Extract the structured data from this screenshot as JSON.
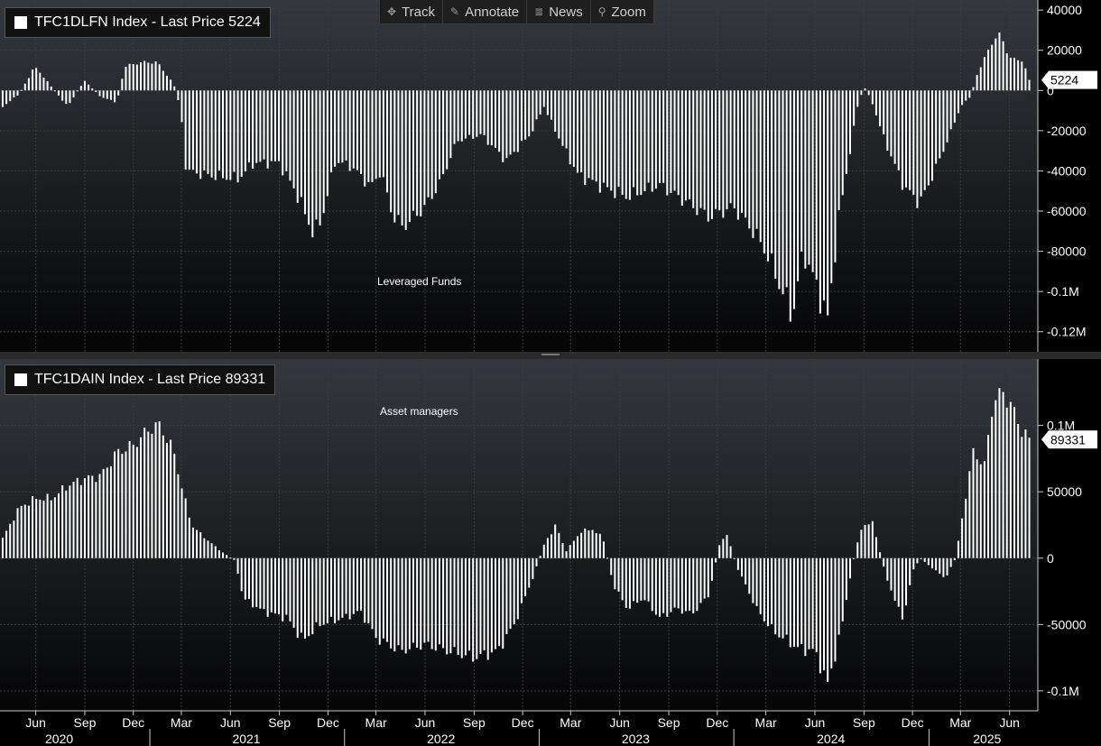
{
  "toolbar": {
    "items": [
      {
        "label": "Track",
        "icon": "crosshair-icon"
      },
      {
        "label": "Annotate",
        "icon": "pencil-icon"
      },
      {
        "label": "News",
        "icon": "news-icon"
      },
      {
        "label": "Zoom",
        "icon": "magnifier-icon"
      }
    ]
  },
  "colors": {
    "background": "#000000",
    "bars": "#ffffff",
    "grid": "#3c3c3c",
    "axis": "#c8c8c8"
  },
  "chart_data": [
    {
      "type": "bar",
      "panel": "top",
      "legend": "TFC1DLFN Index - Last Price 5224",
      "annotation": "Leveraged Funds",
      "last_value_label": "5224",
      "ylim": [
        -130000,
        45000
      ],
      "y_ticks": [
        {
          "v": 40000,
          "label": "40000"
        },
        {
          "v": 20000,
          "label": "20000"
        },
        {
          "v": 0,
          "label": "0"
        },
        {
          "v": -20000,
          "label": "-20000"
        },
        {
          "v": -40000,
          "label": "-40000"
        },
        {
          "v": -60000,
          "label": "-60000"
        },
        {
          "v": -80000,
          "label": "-80000"
        },
        {
          "v": -100000,
          "label": "-0.1M"
        },
        {
          "v": -120000,
          "label": "-0.12M"
        }
      ],
      "series_knots": [
        [
          "2020-03-31",
          -8000
        ],
        [
          "2020-04-30",
          -2000
        ],
        [
          "2020-05-31",
          12000
        ],
        [
          "2020-06-30",
          2000
        ],
        [
          "2020-07-31",
          -8000
        ],
        [
          "2020-08-31",
          5000
        ],
        [
          "2020-09-30",
          -3000
        ],
        [
          "2020-10-31",
          -6000
        ],
        [
          "2020-11-15",
          12000
        ],
        [
          "2020-12-15",
          14000
        ],
        [
          "2021-01-15",
          14000
        ],
        [
          "2021-02-15",
          3000
        ],
        [
          "2021-02-28",
          -10000
        ],
        [
          "2021-03-10",
          -40000
        ],
        [
          "2021-04-15",
          -42000
        ],
        [
          "2021-06-15",
          -44000
        ],
        [
          "2021-07-15",
          -36000
        ],
        [
          "2021-08-31",
          -36000
        ],
        [
          "2021-10-01",
          -50000
        ],
        [
          "2021-11-05",
          -72000
        ],
        [
          "2021-11-20",
          -63000
        ],
        [
          "2021-12-15",
          -35000
        ],
        [
          "2022-01-15",
          -38000
        ],
        [
          "2022-02-20",
          -48000
        ],
        [
          "2022-03-10",
          -40000
        ],
        [
          "2022-04-01",
          -62000
        ],
        [
          "2022-04-20",
          -68000
        ],
        [
          "2022-06-01",
          -58000
        ],
        [
          "2022-07-01",
          -45000
        ],
        [
          "2022-07-31",
          -25000
        ],
        [
          "2022-09-15",
          -22000
        ],
        [
          "2022-10-31",
          -35000
        ],
        [
          "2022-12-15",
          -22000
        ],
        [
          "2023-01-10",
          -8000
        ],
        [
          "2023-02-15",
          -28000
        ],
        [
          "2023-03-15",
          -42000
        ],
        [
          "2023-05-01",
          -48000
        ],
        [
          "2023-06-15",
          -53000
        ],
        [
          "2023-08-15",
          -47000
        ],
        [
          "2023-10-01",
          -55000
        ],
        [
          "2023-11-15",
          -63000
        ],
        [
          "2023-12-31",
          -58000
        ],
        [
          "2024-02-01",
          -68000
        ],
        [
          "2024-03-01",
          -80000
        ],
        [
          "2024-04-01",
          -100000
        ],
        [
          "2024-04-20",
          -112000
        ],
        [
          "2024-05-10",
          -80000
        ],
        [
          "2024-06-01",
          -95000
        ],
        [
          "2024-06-25",
          -114000
        ],
        [
          "2024-07-15",
          -65000
        ],
        [
          "2024-08-01",
          -38000
        ],
        [
          "2024-08-20",
          -8000
        ],
        [
          "2024-09-01",
          2000
        ],
        [
          "2024-09-15",
          -5000
        ],
        [
          "2024-10-10",
          -25000
        ],
        [
          "2024-11-15",
          -48000
        ],
        [
          "2024-12-15",
          -56000
        ],
        [
          "2025-01-15",
          -38000
        ],
        [
          "2025-02-15",
          -18000
        ],
        [
          "2025-03-01",
          -8000
        ],
        [
          "2025-03-20",
          -3000
        ],
        [
          "2025-04-01",
          8000
        ],
        [
          "2025-05-01",
          25000
        ],
        [
          "2025-05-15",
          28000
        ],
        [
          "2025-06-01",
          16000
        ],
        [
          "2025-06-25",
          15000
        ],
        [
          "2025-07-08",
          5224
        ]
      ]
    },
    {
      "type": "bar",
      "panel": "bottom",
      "legend": "TFC1DAIN Index - Last Price 89331",
      "annotation": "Asset managers",
      "last_value_label": "89331",
      "ylim": [
        -115000,
        150000
      ],
      "y_ticks": [
        {
          "v": 100000,
          "label": "0.1M"
        },
        {
          "v": 50000,
          "label": "50000"
        },
        {
          "v": 0,
          "label": "0"
        },
        {
          "v": -50000,
          "label": "-50000"
        },
        {
          "v": -100000,
          "label": "-0.1M"
        }
      ],
      "series_knots": [
        [
          "2020-03-31",
          15000
        ],
        [
          "2020-05-01",
          38000
        ],
        [
          "2020-06-01",
          45000
        ],
        [
          "2020-07-01",
          45000
        ],
        [
          "2020-08-01",
          55000
        ],
        [
          "2020-09-01",
          60000
        ],
        [
          "2020-10-01",
          62000
        ],
        [
          "2020-11-01",
          80000
        ],
        [
          "2020-12-01",
          85000
        ],
        [
          "2021-01-01",
          98000
        ],
        [
          "2021-01-20",
          100000
        ],
        [
          "2021-02-15",
          80000
        ],
        [
          "2021-03-01",
          55000
        ],
        [
          "2021-03-20",
          25000
        ],
        [
          "2021-04-15",
          15000
        ],
        [
          "2021-05-15",
          5000
        ],
        [
          "2021-06-10",
          -2000
        ],
        [
          "2021-06-25",
          -30000
        ],
        [
          "2021-08-01",
          -40000
        ],
        [
          "2021-09-15",
          -45000
        ],
        [
          "2021-10-15",
          -62000
        ],
        [
          "2021-11-15",
          -50000
        ],
        [
          "2021-12-31",
          -45000
        ],
        [
          "2022-01-31",
          -40000
        ],
        [
          "2022-03-01",
          -60000
        ],
        [
          "2022-04-15",
          -70000
        ],
        [
          "2022-06-01",
          -65000
        ],
        [
          "2022-07-15",
          -70000
        ],
        [
          "2022-09-01",
          -75000
        ],
        [
          "2022-10-15",
          -70000
        ],
        [
          "2022-11-15",
          -50000
        ],
        [
          "2022-12-20",
          -15000
        ],
        [
          "2023-01-10",
          10000
        ],
        [
          "2023-02-01",
          25000
        ],
        [
          "2023-02-20",
          5000
        ],
        [
          "2023-03-20",
          20000
        ],
        [
          "2023-04-10",
          22000
        ],
        [
          "2023-05-01",
          15000
        ],
        [
          "2023-05-20",
          -20000
        ],
        [
          "2023-06-15",
          -38000
        ],
        [
          "2023-07-15",
          -30000
        ],
        [
          "2023-08-15",
          -45000
        ],
        [
          "2023-09-15",
          -38000
        ],
        [
          "2023-10-15",
          -42000
        ],
        [
          "2023-11-15",
          -28000
        ],
        [
          "2023-12-05",
          10000
        ],
        [
          "2023-12-20",
          18000
        ],
        [
          "2024-01-05",
          -5000
        ],
        [
          "2024-02-15",
          -40000
        ],
        [
          "2024-03-15",
          -55000
        ],
        [
          "2024-05-01",
          -68000
        ],
        [
          "2024-06-01",
          -70000
        ],
        [
          "2024-06-25",
          -95000
        ],
        [
          "2024-07-20",
          -55000
        ],
        [
          "2024-08-10",
          -5000
        ],
        [
          "2024-08-25",
          20000
        ],
        [
          "2024-09-15",
          30000
        ],
        [
          "2024-10-10",
          -10000
        ],
        [
          "2024-10-31",
          -35000
        ],
        [
          "2024-11-15",
          -45000
        ],
        [
          "2024-12-01",
          -10000
        ],
        [
          "2024-12-15",
          0
        ],
        [
          "2025-01-15",
          -10000
        ],
        [
          "2025-02-01",
          -15000
        ],
        [
          "2025-02-20",
          0
        ],
        [
          "2025-03-10",
          45000
        ],
        [
          "2025-03-25",
          80000
        ],
        [
          "2025-04-15",
          70000
        ],
        [
          "2025-05-01",
          118000
        ],
        [
          "2025-05-20",
          125000
        ],
        [
          "2025-06-10",
          110000
        ],
        [
          "2025-06-25",
          95000
        ],
        [
          "2025-07-08",
          89331
        ]
      ]
    }
  ],
  "x_axis": {
    "months": [
      {
        "date": "2020-06-01",
        "label": "Jun"
      },
      {
        "date": "2020-09-01",
        "label": "Sep"
      },
      {
        "date": "2020-12-01",
        "label": "Dec"
      },
      {
        "date": "2021-03-01",
        "label": "Mar"
      },
      {
        "date": "2021-06-01",
        "label": "Jun"
      },
      {
        "date": "2021-09-01",
        "label": "Sep"
      },
      {
        "date": "2021-12-01",
        "label": "Dec"
      },
      {
        "date": "2022-03-01",
        "label": "Mar"
      },
      {
        "date": "2022-06-01",
        "label": "Jun"
      },
      {
        "date": "2022-09-01",
        "label": "Sep"
      },
      {
        "date": "2022-12-01",
        "label": "Dec"
      },
      {
        "date": "2023-03-01",
        "label": "Mar"
      },
      {
        "date": "2023-06-01",
        "label": "Jun"
      },
      {
        "date": "2023-09-01",
        "label": "Sep"
      },
      {
        "date": "2023-12-01",
        "label": "Dec"
      },
      {
        "date": "2024-03-01",
        "label": "Mar"
      },
      {
        "date": "2024-06-01",
        "label": "Jun"
      },
      {
        "date": "2024-09-01",
        "label": "Sep"
      },
      {
        "date": "2024-12-01",
        "label": "Dec"
      },
      {
        "date": "2025-03-01",
        "label": "Mar"
      },
      {
        "date": "2025-06-01",
        "label": "Jun"
      }
    ],
    "years": [
      {
        "date": "2020-07-15",
        "label": "2020"
      },
      {
        "date": "2021-07-01",
        "label": "2021"
      },
      {
        "date": "2022-07-01",
        "label": "2022"
      },
      {
        "date": "2023-07-01",
        "label": "2023"
      },
      {
        "date": "2024-07-01",
        "label": "2024"
      },
      {
        "date": "2025-04-20",
        "label": "2025"
      }
    ],
    "year_separators": [
      "2021-01-01",
      "2022-01-01",
      "2023-01-01",
      "2024-01-01",
      "2025-01-01"
    ]
  }
}
